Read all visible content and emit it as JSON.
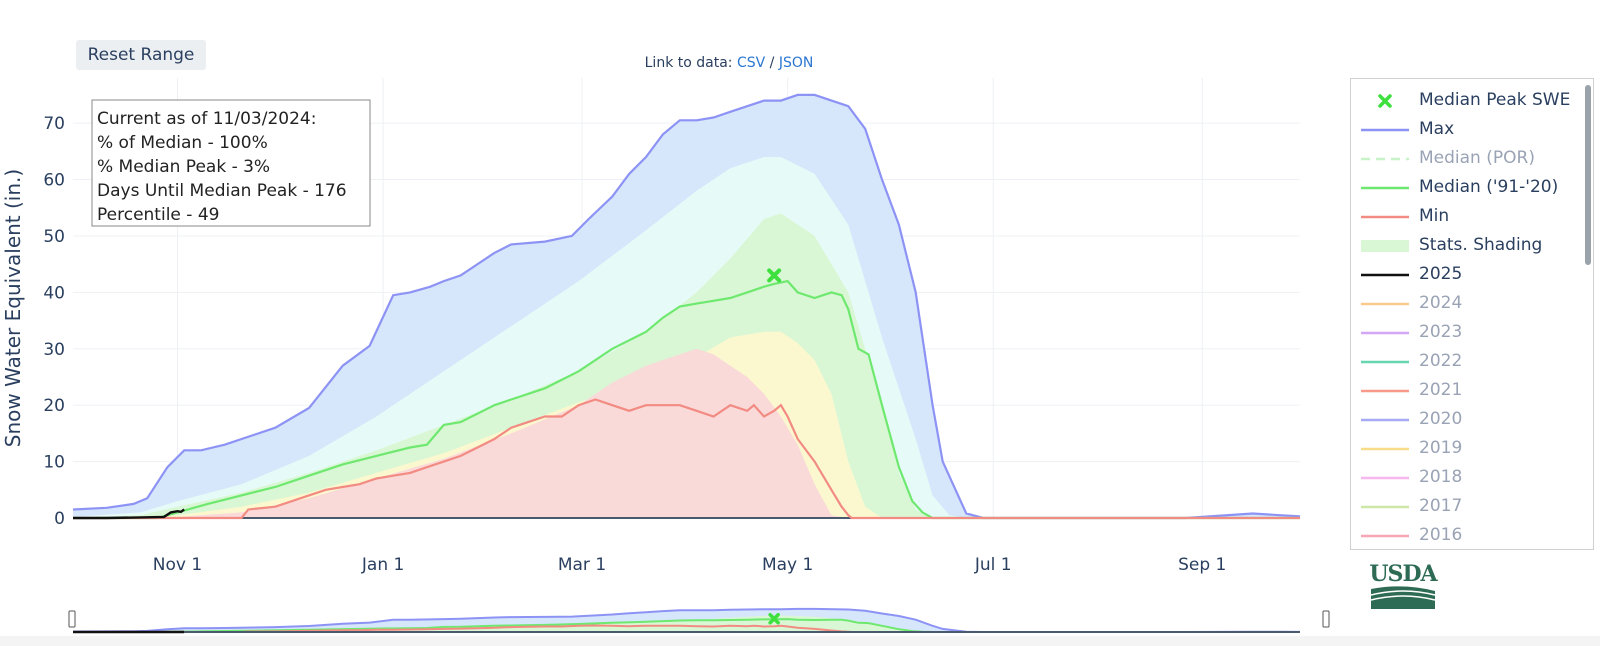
{
  "toolbar": {
    "reset_label": "Reset Range"
  },
  "links": {
    "prefix": "Link to data:",
    "csv": "CSV",
    "sep": "/",
    "json": "JSON"
  },
  "info_box": {
    "line1": "Current as of 11/03/2024:",
    "line2": "% of Median - 100%",
    "line3": "% Median Peak - 3%",
    "line4": "Days Until Median Peak - 176",
    "line5": "Percentile - 49"
  },
  "logo": {
    "text": "USDA"
  },
  "colors": {
    "max": "#8d93f5",
    "median": "#6ee86e",
    "min": "#f28b82",
    "current": "#111111",
    "band_outer": "#d6e6fb",
    "band_upper": "#e6fbf8",
    "band_mid": "#d9f7d5",
    "band_lower": "#fbf8cf",
    "band_min": "#fad9d9",
    "peak": "#3ee03e",
    "grid": "#eef0f5"
  },
  "chart_data": {
    "type": "area",
    "ylabel": "Snow Water Equivalent (in.)",
    "xlabel": "",
    "ylim": [
      0,
      78
    ],
    "yticks": [
      0,
      10,
      20,
      30,
      40,
      50,
      60,
      70
    ],
    "xticks": [
      {
        "label": "Nov  1",
        "day": 31
      },
      {
        "label": "Jan  1",
        "day": 92
      },
      {
        "label": "Mar  1",
        "day": 151
      },
      {
        "label": "May  1",
        "day": 212
      },
      {
        "label": "Jul  1",
        "day": 273
      },
      {
        "label": "Sep  1",
        "day": 335
      }
    ],
    "x_unit": "days since Oct 1",
    "xlim": [
      0,
      364
    ],
    "series": [
      {
        "name": "Max",
        "x": [
          0,
          10,
          18,
          22,
          28,
          33,
          38,
          45,
          60,
          70,
          80,
          88,
          95,
          100,
          106,
          110,
          115,
          125,
          130,
          140,
          148,
          153,
          160,
          165,
          170,
          175,
          180,
          185,
          190,
          195,
          200,
          205,
          210,
          215,
          220,
          230,
          235,
          240,
          245,
          250,
          255,
          258,
          265,
          270,
          275,
          280,
          285,
          290,
          295,
          300,
          330,
          350,
          358,
          364
        ],
        "y": [
          1.5,
          1.8,
          2.5,
          3.5,
          9,
          12,
          12,
          13,
          16,
          19.5,
          27,
          30.5,
          39.5,
          40,
          41,
          42,
          43,
          47,
          48.5,
          49,
          50,
          53,
          57,
          61,
          64,
          68,
          70.5,
          70.5,
          71,
          72,
          73,
          74,
          74,
          75,
          75,
          73,
          69,
          60,
          52,
          40,
          20,
          10,
          0.8,
          0,
          0,
          0,
          0,
          0,
          0,
          0,
          0,
          0.8,
          0.5,
          0.3
        ]
      },
      {
        "name": "Stats. Shading upper",
        "x": [
          0,
          20,
          31,
          50,
          70,
          90,
          110,
          130,
          150,
          170,
          185,
          195,
          205,
          210,
          220,
          230,
          240,
          250,
          255,
          260,
          265,
          270,
          275,
          364
        ],
        "y": [
          0.2,
          1,
          3,
          6,
          11,
          18,
          26,
          34,
          42,
          51,
          58,
          62,
          64,
          64,
          61,
          52,
          32,
          14,
          4,
          0.5,
          0,
          0,
          0,
          0
        ]
      },
      {
        "name": "Stats. Shading middle",
        "x": [
          0,
          20,
          31,
          50,
          70,
          90,
          110,
          130,
          150,
          170,
          185,
          195,
          205,
          210,
          220,
          230,
          240,
          245,
          250,
          255,
          260,
          364
        ],
        "y": [
          0,
          0.5,
          2,
          4.5,
          8,
          12,
          16.5,
          21,
          26,
          33,
          40,
          46,
          53,
          54,
          50,
          40,
          20,
          8,
          1.5,
          0,
          0,
          0
        ]
      },
      {
        "name": "Median ('91-'20)",
        "x": [
          0,
          25,
          31,
          40,
          50,
          60,
          70,
          80,
          90,
          100,
          105,
          110,
          115,
          125,
          130,
          140,
          150,
          160,
          170,
          175,
          180,
          185,
          190,
          195,
          200,
          205,
          208,
          212,
          215,
          220,
          225,
          228,
          230,
          233,
          236,
          240,
          245,
          249,
          252,
          255,
          260,
          364
        ],
        "y": [
          0,
          0,
          1,
          2.5,
          4,
          5.5,
          7.5,
          9.5,
          11,
          12.5,
          13,
          16.5,
          17,
          20,
          21,
          23,
          26,
          30,
          33,
          35.5,
          37.5,
          38,
          38.5,
          39,
          40,
          41,
          41.5,
          42,
          40,
          39,
          40,
          39.5,
          37,
          30,
          29,
          20,
          9,
          3,
          1,
          0,
          0,
          0
        ]
      },
      {
        "name": "Stats. Shading lower",
        "x": [
          0,
          31,
          50,
          70,
          90,
          110,
          130,
          150,
          170,
          185,
          195,
          205,
          210,
          215,
          220,
          225,
          230,
          235,
          240,
          364
        ],
        "y": [
          0,
          0.5,
          2,
          4.5,
          8,
          11.5,
          16,
          20.5,
          24.5,
          28.5,
          32,
          33,
          33,
          31,
          28,
          22,
          10,
          2,
          0,
          0
        ]
      },
      {
        "name": "Stats. Shading min",
        "x": [
          0,
          31,
          50,
          70,
          90,
          110,
          130,
          150,
          160,
          170,
          180,
          185,
          190,
          195,
          200,
          205,
          210,
          215,
          220,
          225,
          230,
          364
        ],
        "y": [
          0,
          0.2,
          1,
          3.5,
          7,
          10.5,
          15,
          20,
          24,
          27,
          29,
          30,
          29,
          27,
          25,
          22,
          18,
          13,
          6,
          0.5,
          0,
          0
        ]
      },
      {
        "name": "Min",
        "x": [
          0,
          50,
          52,
          60,
          65,
          70,
          75,
          80,
          85,
          90,
          95,
          100,
          105,
          110,
          115,
          120,
          125,
          130,
          135,
          140,
          145,
          150,
          155,
          160,
          165,
          170,
          175,
          180,
          185,
          190,
          195,
          200,
          202,
          205,
          208,
          210,
          212,
          215,
          220,
          225,
          228,
          230,
          231,
          364
        ],
        "y": [
          0,
          0,
          1.5,
          2,
          3,
          4,
          5,
          5.5,
          6,
          7,
          7.5,
          8,
          9,
          10,
          11,
          12.5,
          14,
          16,
          17,
          18,
          18,
          20,
          21,
          20,
          19,
          20,
          20,
          20,
          19,
          18,
          20,
          19,
          20,
          18,
          19,
          20,
          18,
          14,
          10,
          5,
          2,
          0.5,
          0,
          0
        ]
      },
      {
        "name": "2025",
        "x": [
          0,
          10,
          20,
          27,
          29,
          31,
          32,
          33
        ],
        "y": [
          0,
          0,
          0.1,
          0.2,
          1,
          1.2,
          1.1,
          1.5
        ]
      }
    ],
    "median_peak": {
      "name": "Median Peak SWE",
      "day": 208,
      "value": 43
    }
  },
  "legend": {
    "items": [
      {
        "label": "Median Peak SWE",
        "color": "#3ee03e",
        "style": "x",
        "active": true
      },
      {
        "label": "Max",
        "color": "#8d93f5",
        "style": "line",
        "active": true
      },
      {
        "label": "Median (POR)",
        "color": "#c8f2c8",
        "style": "dash",
        "active": false
      },
      {
        "label": "Median ('91-'20)",
        "color": "#6ee86e",
        "style": "line",
        "active": true
      },
      {
        "label": "Min",
        "color": "#f28b82",
        "style": "line",
        "active": true
      },
      {
        "label": "Stats. Shading",
        "color": "#d9f7d5",
        "style": "fill",
        "active": true
      },
      {
        "label": "2025",
        "color": "#111111",
        "style": "line",
        "active": true
      },
      {
        "label": "2024",
        "color": "#fcc98a",
        "style": "line",
        "active": false
      },
      {
        "label": "2023",
        "color": "#d3a6f6",
        "style": "line",
        "active": false
      },
      {
        "label": "2022",
        "color": "#66d6b0",
        "style": "line",
        "active": false
      },
      {
        "label": "2021",
        "color": "#f79a8a",
        "style": "line",
        "active": false
      },
      {
        "label": "2020",
        "color": "#a6a9f6",
        "style": "line",
        "active": false
      },
      {
        "label": "2019",
        "color": "#f8dc8a",
        "style": "line",
        "active": false
      },
      {
        "label": "2018",
        "color": "#f7b8f0",
        "style": "line",
        "active": false
      },
      {
        "label": "2017",
        "color": "#cde8a6",
        "style": "line",
        "active": false
      },
      {
        "label": "2016",
        "color": "#f7a6b4",
        "style": "line",
        "active": false
      }
    ]
  }
}
